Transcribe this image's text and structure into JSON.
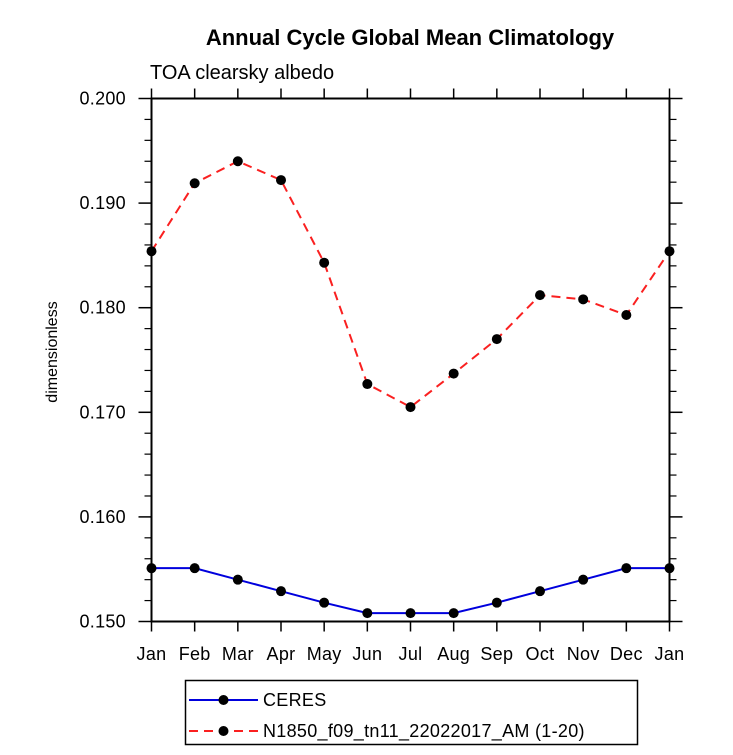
{
  "chart_data": {
    "type": "line",
    "title": "Annual Cycle Global Mean Climatology",
    "subtitle": "TOA clearsky albedo",
    "xlabel": "",
    "ylabel": "dimensionless",
    "categories": [
      "Jan",
      "Feb",
      "Mar",
      "Apr",
      "May",
      "Jun",
      "Jul",
      "Aug",
      "Sep",
      "Oct",
      "Nov",
      "Dec",
      "Jan"
    ],
    "ylim": [
      0.15,
      0.2
    ],
    "ytick_major": 0.01,
    "ytick_minor": 0.002,
    "ytick_label_format_decimals": 3,
    "grid": false,
    "background_color": "#ffffff",
    "frame_color": "#000000",
    "marker": "filled-circle",
    "marker_color": "#000000",
    "legend_position": "bottom-boxed",
    "series": [
      {
        "name": "CERES",
        "color": "#0000dd",
        "line_style": "solid",
        "values": [
          0.1551,
          0.1551,
          0.154,
          0.1529,
          0.1518,
          0.1508,
          0.1508,
          0.1508,
          0.1518,
          0.1529,
          0.154,
          0.1551,
          0.1551
        ]
      },
      {
        "name": "N1850_f09_tn11_22022017_AM (1-20)",
        "color": "#fa2020",
        "line_style": "dashed",
        "values": [
          0.1854,
          0.1919,
          0.194,
          0.1922,
          0.1843,
          0.1727,
          0.1705,
          0.1737,
          0.177,
          0.1812,
          0.1808,
          0.1793,
          0.1854
        ]
      }
    ]
  }
}
